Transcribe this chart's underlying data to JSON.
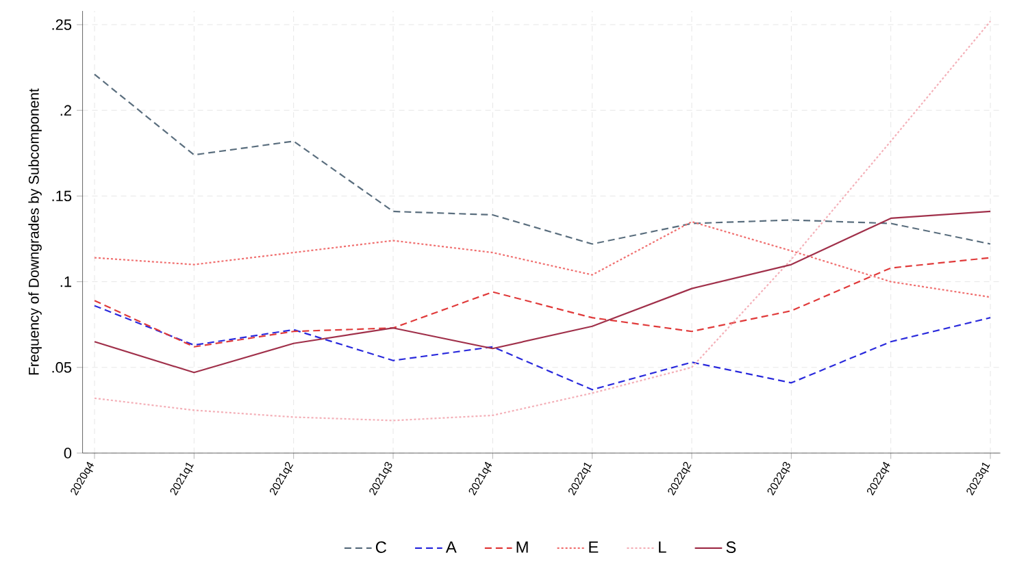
{
  "chart_data": {
    "type": "line",
    "ylabel": "Frequency of Downgrades by Subcomponent",
    "categories": [
      "2020q4",
      "2021q1",
      "2021q2",
      "2021q3",
      "2021q4",
      "2022q1",
      "2022q2",
      "2022q3",
      "2022q4",
      "2023q1"
    ],
    "ylim": [
      0,
      0.258
    ],
    "yticks": [
      0,
      {
        "value": 0.05,
        "label": ".05"
      },
      {
        "value": 0.1,
        "label": ".1"
      },
      {
        "value": 0.15,
        "label": ".15"
      },
      {
        "value": 0.2,
        "label": ".2"
      },
      {
        "value": 0.25,
        "label": ".25"
      }
    ],
    "grid": true,
    "legend": "bottom",
    "series": [
      {
        "name": "C",
        "color": "#5a6e7e",
        "line_style": "dashed",
        "values": [
          0.221,
          0.174,
          0.182,
          0.141,
          0.139,
          0.122,
          0.134,
          0.136,
          0.134,
          0.122
        ]
      },
      {
        "name": "A",
        "color": "#2a2adc",
        "line_style": "dashed",
        "values": [
          0.086,
          0.063,
          0.072,
          0.054,
          0.062,
          0.037,
          0.053,
          0.041,
          0.065,
          0.079
        ]
      },
      {
        "name": "M",
        "color": "#e03a3a",
        "line_style": "dashed",
        "values": [
          0.089,
          0.062,
          0.071,
          0.073,
          0.094,
          0.079,
          0.071,
          0.083,
          0.108,
          0.114
        ]
      },
      {
        "name": "E",
        "color": "#f07070",
        "line_style": "dotted",
        "values": [
          0.114,
          0.11,
          0.117,
          0.124,
          0.117,
          0.104,
          0.135,
          0.118,
          0.1,
          0.091
        ]
      },
      {
        "name": "L",
        "color": "#f4b0b8",
        "line_style": "dotted",
        "values": [
          0.032,
          0.025,
          0.021,
          0.019,
          0.022,
          0.035,
          0.05,
          0.113,
          0.182,
          0.252
        ]
      },
      {
        "name": "S",
        "color": "#a0304a",
        "line_style": "solid",
        "values": [
          0.065,
          0.047,
          0.064,
          0.073,
          0.061,
          0.074,
          0.096,
          0.11,
          0.137,
          0.141
        ]
      }
    ]
  }
}
